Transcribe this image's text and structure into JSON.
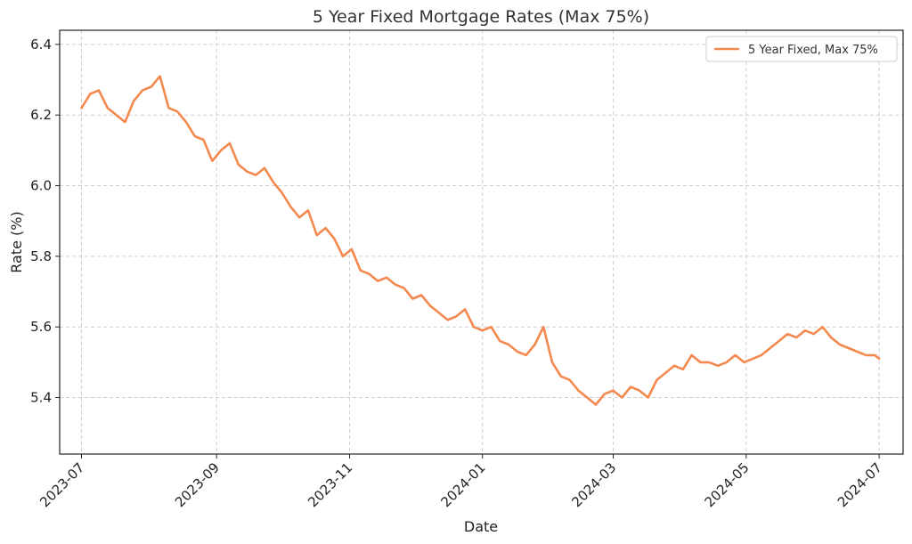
{
  "chart_data": {
    "type": "line",
    "title": "5 Year Fixed Mortgage Rates (Max 75%)",
    "xlabel": "Date",
    "ylabel": "Rate (%)",
    "x_tick_labels": [
      "2023-07",
      "2023-09",
      "2023-11",
      "2024-01",
      "2024-03",
      "2024-05",
      "2024-07"
    ],
    "y_tick_labels": [
      "5.4",
      "5.6",
      "5.8",
      "6.0",
      "6.2",
      "6.4"
    ],
    "y_ticks": [
      5.4,
      5.6,
      5.8,
      6.0,
      6.2,
      6.4
    ],
    "ylim": [
      5.24,
      6.44
    ],
    "xlim": [
      "2023-06-21",
      "2024-07-12"
    ],
    "grid": true,
    "legend_position": "top-right",
    "series_color": "#f4894f",
    "series": [
      {
        "name": "5 Year Fixed, Max 75%",
        "x": [
          "2023-07-01",
          "2023-07-05",
          "2023-07-09",
          "2023-07-13",
          "2023-07-17",
          "2023-07-21",
          "2023-07-25",
          "2023-07-29",
          "2023-08-02",
          "2023-08-06",
          "2023-08-10",
          "2023-08-14",
          "2023-08-18",
          "2023-08-22",
          "2023-08-26",
          "2023-08-30",
          "2023-09-03",
          "2023-09-07",
          "2023-09-11",
          "2023-09-15",
          "2023-09-19",
          "2023-09-23",
          "2023-09-27",
          "2023-10-01",
          "2023-10-05",
          "2023-10-09",
          "2023-10-13",
          "2023-10-17",
          "2023-10-21",
          "2023-10-25",
          "2023-10-29",
          "2023-11-02",
          "2023-11-06",
          "2023-11-10",
          "2023-11-14",
          "2023-11-18",
          "2023-11-22",
          "2023-11-26",
          "2023-11-30",
          "2023-12-04",
          "2023-12-08",
          "2023-12-12",
          "2023-12-16",
          "2023-12-20",
          "2023-12-24",
          "2023-12-28",
          "2024-01-01",
          "2024-01-05",
          "2024-01-09",
          "2024-01-13",
          "2024-01-17",
          "2024-01-21",
          "2024-01-25",
          "2024-01-29",
          "2024-02-02",
          "2024-02-06",
          "2024-02-10",
          "2024-02-14",
          "2024-02-18",
          "2024-02-22",
          "2024-02-26",
          "2024-03-01",
          "2024-03-05",
          "2024-03-09",
          "2024-03-13",
          "2024-03-17",
          "2024-03-21",
          "2024-03-25",
          "2024-03-29",
          "2024-04-02",
          "2024-04-06",
          "2024-04-10",
          "2024-04-14",
          "2024-04-18",
          "2024-04-22",
          "2024-04-26",
          "2024-04-30",
          "2024-05-04",
          "2024-05-08",
          "2024-05-12",
          "2024-05-16",
          "2024-05-20",
          "2024-05-24",
          "2024-05-28",
          "2024-06-01",
          "2024-06-05",
          "2024-06-09",
          "2024-06-13",
          "2024-06-17",
          "2024-06-21",
          "2024-06-25",
          "2024-06-29",
          "2024-07-01"
        ],
        "values": [
          6.22,
          6.26,
          6.27,
          6.22,
          6.2,
          6.18,
          6.24,
          6.27,
          6.28,
          6.31,
          6.22,
          6.21,
          6.18,
          6.14,
          6.13,
          6.07,
          6.1,
          6.12,
          6.06,
          6.04,
          6.03,
          6.05,
          6.01,
          5.98,
          5.94,
          5.91,
          5.93,
          5.86,
          5.88,
          5.85,
          5.8,
          5.82,
          5.76,
          5.75,
          5.73,
          5.74,
          5.72,
          5.71,
          5.68,
          5.69,
          5.66,
          5.64,
          5.62,
          5.63,
          5.65,
          5.6,
          5.59,
          5.6,
          5.56,
          5.55,
          5.53,
          5.52,
          5.55,
          5.6,
          5.5,
          5.46,
          5.45,
          5.42,
          5.4,
          5.38,
          5.41,
          5.42,
          5.4,
          5.43,
          5.42,
          5.4,
          5.45,
          5.47,
          5.49,
          5.48,
          5.52,
          5.5,
          5.5,
          5.49,
          5.5,
          5.52,
          5.5,
          5.51,
          5.52,
          5.54,
          5.56,
          5.58,
          5.57,
          5.59,
          5.58,
          5.6,
          5.57,
          5.55,
          5.54,
          5.53,
          5.52,
          5.52,
          5.51
        ]
      }
    ]
  }
}
